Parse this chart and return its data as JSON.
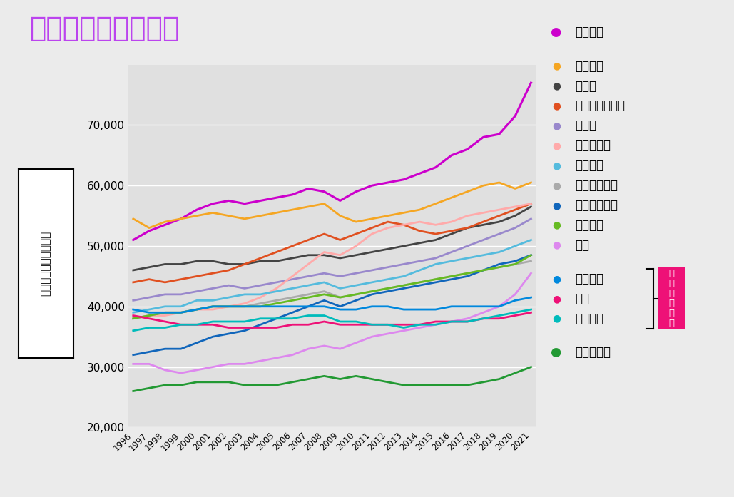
{
  "title": "日本は賃金下位集団",
  "ylabel": "平均年間賃金（ドル）",
  "background_color": "#ebebeb",
  "plot_bg_color": "#e0e0e0",
  "years": [
    1996,
    1997,
    1998,
    1999,
    2000,
    2001,
    2002,
    2003,
    2004,
    2005,
    2006,
    2007,
    2008,
    2009,
    2010,
    2011,
    2012,
    2013,
    2014,
    2015,
    2016,
    2017,
    2018,
    2019,
    2020,
    2021
  ],
  "series": {
    "アメリカ": {
      "color": "#cc00cc",
      "lw": 2.2,
      "data": [
        51000,
        52500,
        53500,
        54500,
        56000,
        57000,
        57500,
        57000,
        57500,
        58000,
        58500,
        59500,
        59000,
        57500,
        59000,
        60000,
        60500,
        61000,
        62000,
        63000,
        65000,
        66000,
        68000,
        68500,
        71500,
        77000
      ]
    },
    "オランダ": {
      "color": "#f5a623",
      "lw": 2.0,
      "data": [
        54500,
        53000,
        54000,
        54500,
        55000,
        55500,
        55000,
        54500,
        55000,
        55500,
        56000,
        56500,
        57000,
        55000,
        54000,
        54500,
        55000,
        55500,
        56000,
        57000,
        58000,
        59000,
        60000,
        60500,
        59500,
        60500
      ]
    },
    "ドイツ": {
      "color": "#444444",
      "lw": 2.0,
      "data": [
        46000,
        46500,
        47000,
        47000,
        47500,
        47500,
        47000,
        47000,
        47500,
        47500,
        48000,
        48500,
        48500,
        48000,
        48500,
        49000,
        49500,
        50000,
        50500,
        51000,
        52000,
        53000,
        53500,
        54000,
        55000,
        56500
      ]
    },
    "オーストラリア": {
      "color": "#e05020",
      "lw": 2.0,
      "data": [
        44000,
        44500,
        44000,
        44500,
        45000,
        45500,
        46000,
        47000,
        48000,
        49000,
        50000,
        51000,
        52000,
        51000,
        52000,
        53000,
        54000,
        53500,
        52500,
        52000,
        52500,
        53000,
        54000,
        55000,
        56000,
        57000
      ]
    },
    "カナダ": {
      "color": "#9988cc",
      "lw": 2.0,
      "data": [
        41000,
        41500,
        42000,
        42000,
        42500,
        43000,
        43500,
        43000,
        43500,
        44000,
        44500,
        45000,
        45500,
        45000,
        45500,
        46000,
        46500,
        47000,
        47500,
        48000,
        49000,
        50000,
        51000,
        52000,
        53000,
        54500
      ]
    },
    "ノルウェー": {
      "color": "#ffaaaa",
      "lw": 2.0,
      "data": [
        38000,
        38500,
        38500,
        39000,
        39500,
        39500,
        40000,
        40500,
        41500,
        43000,
        45000,
        47000,
        49000,
        48500,
        50000,
        52000,
        53000,
        53500,
        54000,
        53500,
        54000,
        55000,
        55500,
        56000,
        56500,
        57000
      ]
    },
    "イギリス": {
      "color": "#55bbdd",
      "lw": 2.0,
      "data": [
        39000,
        39500,
        40000,
        40000,
        41000,
        41000,
        41500,
        42000,
        42000,
        42500,
        43000,
        43500,
        44000,
        43000,
        43500,
        44000,
        44500,
        45000,
        46000,
        47000,
        47500,
        48000,
        48500,
        49000,
        50000,
        51000
      ]
    },
    "フィンランド": {
      "color": "#aaaaaa",
      "lw": 2.0,
      "data": [
        38000,
        38500,
        39000,
        39000,
        39500,
        40000,
        40000,
        40000,
        40500,
        41000,
        41500,
        42000,
        42500,
        41500,
        42000,
        42500,
        43000,
        43500,
        44000,
        44500,
        45000,
        45500,
        46000,
        46500,
        47000,
        47500
      ]
    },
    "スウェーデン": {
      "color": "#1166bb",
      "lw": 2.0,
      "data": [
        32000,
        32500,
        33000,
        33000,
        34000,
        35000,
        35500,
        36000,
        37000,
        38000,
        39000,
        40000,
        41000,
        40000,
        41000,
        42000,
        42500,
        43000,
        43500,
        44000,
        44500,
        45000,
        46000,
        47000,
        47500,
        48500
      ]
    },
    "フランス": {
      "color": "#66bb22",
      "lw": 2.0,
      "data": [
        38000,
        38500,
        39000,
        39000,
        39500,
        40000,
        40000,
        40000,
        40000,
        40500,
        41000,
        41500,
        42000,
        41500,
        42000,
        42500,
        43000,
        43500,
        44000,
        44500,
        45000,
        45500,
        46000,
        46500,
        47000,
        48500
      ]
    },
    "韓国": {
      "color": "#dd88ee",
      "lw": 2.0,
      "data": [
        30500,
        30500,
        29500,
        29000,
        29500,
        30000,
        30500,
        30500,
        31000,
        31500,
        32000,
        33000,
        33500,
        33000,
        34000,
        35000,
        35500,
        36000,
        36500,
        37000,
        37500,
        38000,
        39000,
        40000,
        42000,
        45500
      ]
    },
    "イタリア": {
      "color": "#0088dd",
      "lw": 2.0,
      "data": [
        39500,
        39000,
        39000,
        39000,
        39500,
        40000,
        40000,
        40000,
        40000,
        40000,
        40000,
        40000,
        40000,
        39500,
        39500,
        40000,
        40000,
        39500,
        39500,
        39500,
        40000,
        40000,
        40000,
        40000,
        41000,
        41500
      ]
    },
    "日本": {
      "color": "#ee1177",
      "lw": 2.0,
      "data": [
        38500,
        38000,
        37500,
        37000,
        37000,
        37000,
        36500,
        36500,
        36500,
        36500,
        37000,
        37000,
        37500,
        37000,
        37000,
        37000,
        37000,
        37000,
        37000,
        37500,
        37500,
        37500,
        38000,
        38000,
        38500,
        39000
      ]
    },
    "スペイン": {
      "color": "#00bbbb",
      "lw": 2.0,
      "data": [
        36000,
        36500,
        36500,
        37000,
        37000,
        37500,
        37500,
        37500,
        38000,
        38000,
        38000,
        38500,
        38500,
        37500,
        37500,
        37000,
        37000,
        36500,
        37000,
        37000,
        37500,
        37500,
        38000,
        38500,
        39000,
        39500
      ]
    },
    "ポルトガル": {
      "color": "#229933",
      "lw": 2.0,
      "data": [
        26000,
        26500,
        27000,
        27000,
        27500,
        27500,
        27500,
        27000,
        27000,
        27000,
        27500,
        28000,
        28500,
        28000,
        28500,
        28000,
        27500,
        27000,
        27000,
        27000,
        27000,
        27000,
        27500,
        28000,
        29000,
        30000
      ]
    }
  },
  "ylim": [
    20000,
    80000
  ],
  "yticks": [
    20000,
    30000,
    40000,
    50000,
    60000,
    70000
  ],
  "ytick_labels": [
    "20,000",
    "30,000",
    "40,000",
    "50,000",
    "60,000",
    "70,000"
  ],
  "title_color": "#bb44ee",
  "title_fontsize": 28,
  "legend_fontsize": 12,
  "bracket_label": "賃\n金\n下\n位\n集\n団",
  "bracket_label_color": "#ffffff",
  "bracket_bg_color": "#ee1177"
}
